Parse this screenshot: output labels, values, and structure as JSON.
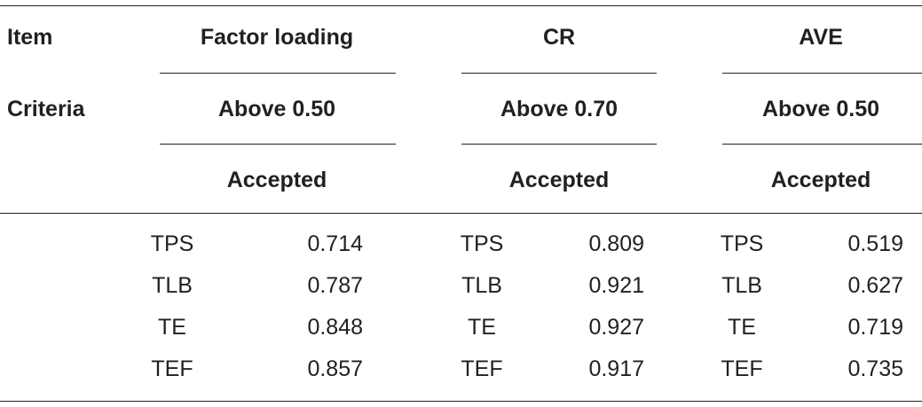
{
  "table": {
    "item_label": "Item",
    "criteria_label": "Criteria",
    "groups": [
      {
        "header": "Factor loading",
        "criteria": "Above 0.50",
        "status": "Accepted",
        "rows": [
          {
            "name": "TPS",
            "value": "0.714"
          },
          {
            "name": "TLB",
            "value": "0.787"
          },
          {
            "name": "TE",
            "value": "0.848"
          },
          {
            "name": "TEF",
            "value": "0.857"
          }
        ]
      },
      {
        "header": "CR",
        "criteria": "Above 0.70",
        "status": "Accepted",
        "rows": [
          {
            "name": "TPS",
            "value": "0.809"
          },
          {
            "name": "TLB",
            "value": "0.921"
          },
          {
            "name": "TE",
            "value": "0.927"
          },
          {
            "name": "TEF",
            "value": "0.917"
          }
        ]
      },
      {
        "header": "AVE",
        "criteria": "Above 0.50",
        "status": "Accepted",
        "rows": [
          {
            "name": "TPS",
            "value": "0.519"
          },
          {
            "name": "TLB",
            "value": "0.627"
          },
          {
            "name": "TE",
            "value": "0.719"
          },
          {
            "name": "TEF",
            "value": "0.735"
          }
        ]
      }
    ]
  }
}
